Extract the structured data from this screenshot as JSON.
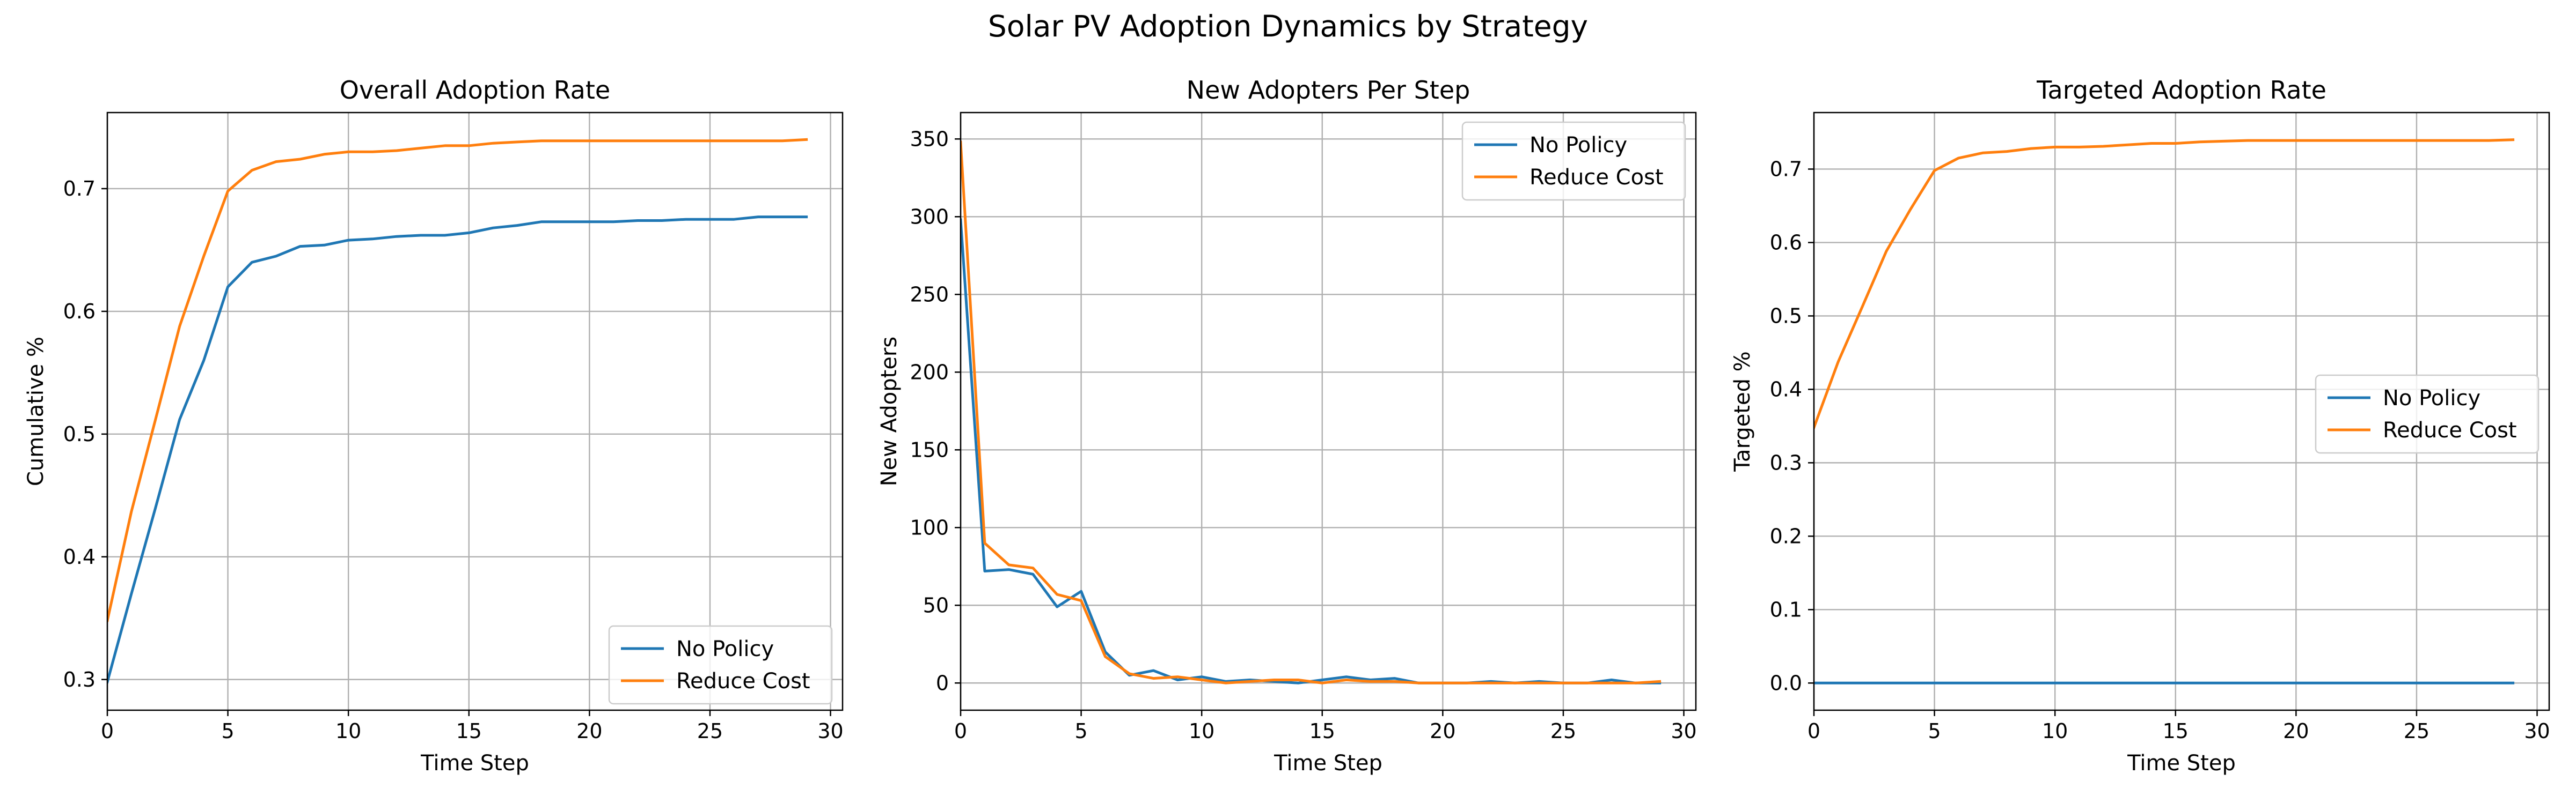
{
  "figure_title": "Solar PV Adoption Dynamics by Strategy",
  "colors": {
    "no_policy": "#1f77b4",
    "reduce_cost": "#ff7f0e",
    "grid": "#b0b0b0"
  },
  "chart_data": [
    {
      "type": "line",
      "title": "Overall Adoption Rate",
      "xlabel": "Time Step",
      "ylabel": "Cumulative %",
      "xlim": [
        0,
        30.5
      ],
      "ylim": [
        0.275,
        0.762
      ],
      "xticks": [
        0,
        5,
        10,
        15,
        20,
        25,
        30
      ],
      "yticks": [
        0.3,
        0.4,
        0.5,
        0.6,
        0.7
      ],
      "ytick_labels": [
        "0.3",
        "0.4",
        "0.5",
        "0.6",
        "0.7"
      ],
      "grid": true,
      "legend": "lower right",
      "x": [
        0,
        1,
        2,
        3,
        4,
        5,
        6,
        7,
        8,
        9,
        10,
        11,
        12,
        13,
        14,
        15,
        16,
        17,
        18,
        19,
        20,
        21,
        22,
        23,
        24,
        25,
        26,
        27,
        28,
        29
      ],
      "series": [
        {
          "name": "No Policy",
          "values": [
            0.298,
            0.37,
            0.44,
            0.512,
            0.56,
            0.62,
            0.64,
            0.645,
            0.653,
            0.654,
            0.658,
            0.659,
            0.661,
            0.662,
            0.662,
            0.664,
            0.668,
            0.67,
            0.673,
            0.673,
            0.673,
            0.673,
            0.674,
            0.674,
            0.675,
            0.675,
            0.675,
            0.677,
            0.677,
            0.677
          ]
        },
        {
          "name": "Reduce Cost",
          "values": [
            0.348,
            0.437,
            0.512,
            0.588,
            0.645,
            0.698,
            0.715,
            0.722,
            0.724,
            0.728,
            0.73,
            0.73,
            0.731,
            0.733,
            0.735,
            0.735,
            0.737,
            0.738,
            0.739,
            0.739,
            0.739,
            0.739,
            0.739,
            0.739,
            0.739,
            0.739,
            0.739,
            0.739,
            0.739,
            0.74
          ]
        }
      ]
    },
    {
      "type": "line",
      "title": "New Adopters Per Step",
      "xlabel": "Time Step",
      "ylabel": "New Adopters",
      "xlim": [
        0,
        30.5
      ],
      "ylim": [
        -17.5,
        367
      ],
      "xticks": [
        0,
        5,
        10,
        15,
        20,
        25,
        30
      ],
      "yticks": [
        0,
        50,
        100,
        150,
        200,
        250,
        300,
        350
      ],
      "ytick_labels": [
        "0",
        "50",
        "100",
        "150",
        "200",
        "250",
        "300",
        "350"
      ],
      "grid": true,
      "legend": "upper right",
      "x": [
        0,
        1,
        2,
        3,
        4,
        5,
        6,
        7,
        8,
        9,
        10,
        11,
        12,
        13,
        14,
        15,
        16,
        17,
        18,
        19,
        20,
        21,
        22,
        23,
        24,
        25,
        26,
        27,
        28,
        29
      ],
      "series": [
        {
          "name": "No Policy",
          "values": [
            298,
            72,
            73,
            70,
            49,
            59,
            20,
            5,
            8,
            2,
            4,
            1,
            2,
            1,
            0,
            2,
            4,
            2,
            3,
            0,
            0,
            0,
            1,
            0,
            1,
            0,
            0,
            2,
            0,
            0
          ]
        },
        {
          "name": "Reduce Cost",
          "values": [
            348,
            90,
            76,
            74,
            57,
            53,
            17,
            6,
            3,
            4,
            2,
            0,
            1,
            2,
            2,
            0,
            2,
            1,
            1,
            0,
            0,
            0,
            0,
            0,
            0,
            0,
            0,
            0,
            0,
            1
          ]
        }
      ]
    },
    {
      "type": "line",
      "title": "Targeted Adoption Rate",
      "xlabel": "Time Step",
      "ylabel": "Targeted %",
      "xlim": [
        0,
        30.5
      ],
      "ylim": [
        -0.037,
        0.777
      ],
      "xticks": [
        0,
        5,
        10,
        15,
        20,
        25,
        30
      ],
      "yticks": [
        0.0,
        0.1,
        0.2,
        0.3,
        0.4,
        0.5,
        0.6,
        0.7
      ],
      "ytick_labels": [
        "0.0",
        "0.1",
        "0.2",
        "0.3",
        "0.4",
        "0.5",
        "0.6",
        "0.7"
      ],
      "grid": true,
      "legend": "center right",
      "x": [
        0,
        1,
        2,
        3,
        4,
        5,
        6,
        7,
        8,
        9,
        10,
        11,
        12,
        13,
        14,
        15,
        16,
        17,
        18,
        19,
        20,
        21,
        22,
        23,
        24,
        25,
        26,
        27,
        28,
        29
      ],
      "series": [
        {
          "name": "No Policy",
          "values": [
            0,
            0,
            0,
            0,
            0,
            0,
            0,
            0,
            0,
            0,
            0,
            0,
            0,
            0,
            0,
            0,
            0,
            0,
            0,
            0,
            0,
            0,
            0,
            0,
            0,
            0,
            0,
            0,
            0,
            0
          ]
        },
        {
          "name": "Reduce Cost",
          "values": [
            0.348,
            0.437,
            0.512,
            0.588,
            0.645,
            0.698,
            0.715,
            0.722,
            0.724,
            0.728,
            0.73,
            0.73,
            0.731,
            0.733,
            0.735,
            0.735,
            0.737,
            0.738,
            0.739,
            0.739,
            0.739,
            0.739,
            0.739,
            0.739,
            0.739,
            0.739,
            0.739,
            0.739,
            0.739,
            0.74
          ]
        }
      ]
    }
  ]
}
